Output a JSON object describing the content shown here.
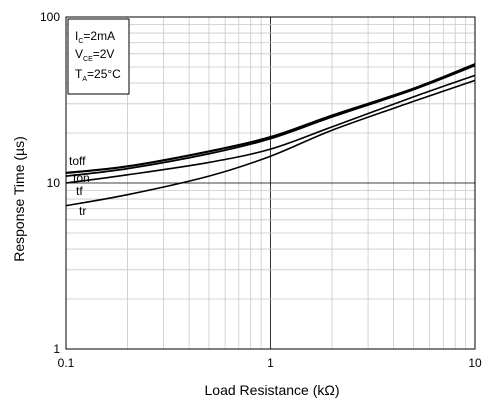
{
  "chart_data": {
    "type": "line",
    "xlabel": "Load Resistance (kΩ)",
    "ylabel": "Response Time (µs)",
    "x_scale": "log",
    "y_scale": "log",
    "xlim": [
      0.1,
      10
    ],
    "ylim": [
      1,
      100
    ],
    "x_ticks": [
      {
        "value": 0.1,
        "label": "0.1"
      },
      {
        "value": 1,
        "label": "1"
      },
      {
        "value": 10,
        "label": "10"
      }
    ],
    "y_ticks": [
      {
        "value": 1,
        "label": "1"
      },
      {
        "value": 10,
        "label": "10"
      },
      {
        "value": 100,
        "label": "100"
      }
    ],
    "grid": true,
    "conditions": [
      {
        "main": "I",
        "sub": "C",
        "rest": "=2mA"
      },
      {
        "main": "V",
        "sub": "CE",
        "rest": "=2V"
      },
      {
        "main": "T",
        "sub": "A",
        "rest": "=25°C"
      }
    ],
    "series": [
      {
        "name": "toff",
        "x": [
          0.1,
          0.2,
          0.5,
          1,
          2,
          5,
          10
        ],
        "y": [
          11.5,
          12.6,
          15.5,
          18.9,
          25.5,
          37.0,
          52.0
        ]
      },
      {
        "name": "ton",
        "x": [
          0.1,
          0.2,
          0.5,
          1,
          2,
          5,
          10
        ],
        "y": [
          11.0,
          12.2,
          15.0,
          18.5,
          25.0,
          36.5,
          51.0
        ]
      },
      {
        "name": "tf",
        "x": [
          0.1,
          0.2,
          0.5,
          1,
          2,
          5,
          10
        ],
        "y": [
          10.0,
          11.2,
          13.3,
          16.0,
          21.8,
          33.0,
          44.5
        ]
      },
      {
        "name": "tr",
        "x": [
          0.1,
          0.2,
          0.5,
          1,
          2,
          5,
          10
        ],
        "y": [
          7.3,
          8.5,
          11.0,
          14.5,
          20.8,
          31.0,
          41.5
        ]
      }
    ]
  }
}
